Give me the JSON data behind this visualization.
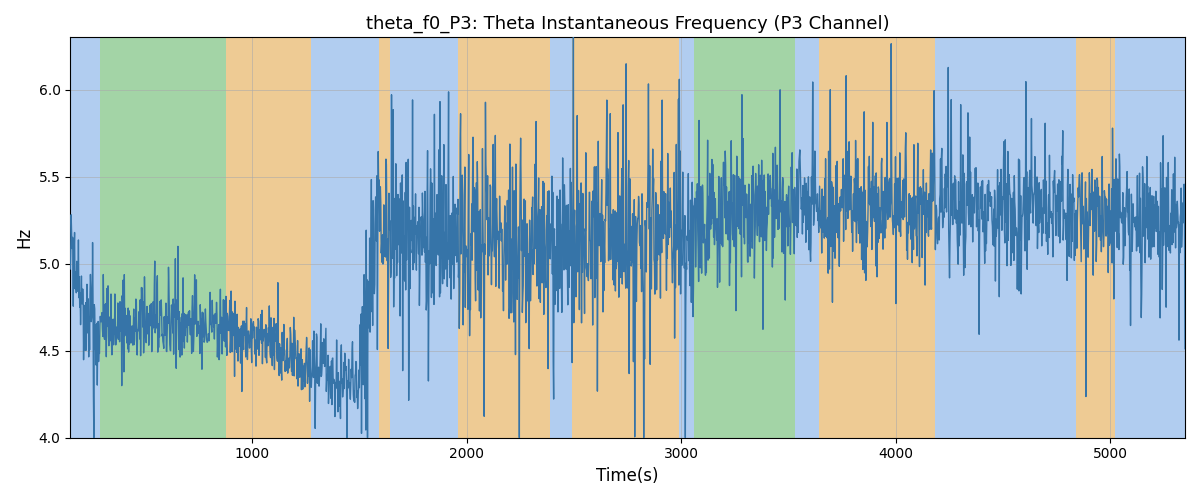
{
  "title": "theta_f0_P3: Theta Instantaneous Frequency (P3 Channel)",
  "xlabel": "Time(s)",
  "ylabel": "Hz",
  "xlim": [
    150,
    5350
  ],
  "ylim": [
    4.0,
    6.3
  ],
  "yticks": [
    4.0,
    4.5,
    5.0,
    5.5,
    6.0
  ],
  "xticks": [
    1000,
    2000,
    3000,
    4000,
    5000
  ],
  "line_color": "#3674a8",
  "line_width": 1.0,
  "axes_facecolor": "#ddeeff",
  "figure_facecolor": "#ffffff",
  "grid_color": "#aaaaaa",
  "bands": [
    {
      "xmin": 150,
      "xmax": 290,
      "color": "#aac8ee",
      "alpha": 0.85
    },
    {
      "xmin": 290,
      "xmax": 875,
      "color": "#90cc88",
      "alpha": 0.75
    },
    {
      "xmin": 875,
      "xmax": 1275,
      "color": "#f5c070",
      "alpha": 0.75
    },
    {
      "xmin": 1275,
      "xmax": 1590,
      "color": "#aac8ee",
      "alpha": 0.85
    },
    {
      "xmin": 1590,
      "xmax": 1640,
      "color": "#f5c070",
      "alpha": 0.75
    },
    {
      "xmin": 1640,
      "xmax": 1960,
      "color": "#aac8ee",
      "alpha": 0.85
    },
    {
      "xmin": 1960,
      "xmax": 2390,
      "color": "#f5c070",
      "alpha": 0.75
    },
    {
      "xmin": 2390,
      "xmax": 2490,
      "color": "#aac8ee",
      "alpha": 0.85
    },
    {
      "xmin": 2490,
      "xmax": 2990,
      "color": "#f5c070",
      "alpha": 0.75
    },
    {
      "xmin": 2990,
      "xmax": 3060,
      "color": "#aac8ee",
      "alpha": 0.85
    },
    {
      "xmin": 3060,
      "xmax": 3530,
      "color": "#90cc88",
      "alpha": 0.75
    },
    {
      "xmin": 3530,
      "xmax": 3645,
      "color": "#aac8ee",
      "alpha": 0.85
    },
    {
      "xmin": 3645,
      "xmax": 4185,
      "color": "#f5c070",
      "alpha": 0.75
    },
    {
      "xmin": 4185,
      "xmax": 4840,
      "color": "#aac8ee",
      "alpha": 0.85
    },
    {
      "xmin": 4840,
      "xmax": 5025,
      "color": "#f5c070",
      "alpha": 0.75
    },
    {
      "xmin": 5025,
      "xmax": 5350,
      "color": "#aac8ee",
      "alpha": 0.85
    }
  ],
  "seed": 12345
}
